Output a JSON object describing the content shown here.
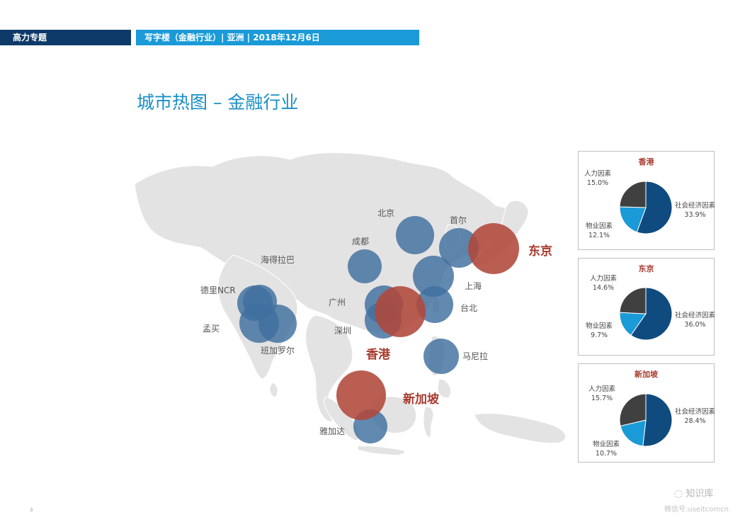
{
  "header": {
    "section": "高力专题",
    "subtitle": "写字楼（金融行业）| 亚洲 | 2018年12月6日"
  },
  "title": "城市热图 – 金融行业",
  "colors": {
    "dark_navy": "#0e3a69",
    "header_blue": "#1a9ad7",
    "bubble_blue": "#3f6f9f",
    "bubble_red": "#b1483a",
    "map_land": "#e3e3e3",
    "pie_navy": "#0f4b7f",
    "pie_blue": "#1a9ad7",
    "pie_gray": "#404040"
  },
  "map": {
    "cities": [
      {
        "name": "北京",
        "highlight": false
      },
      {
        "name": "首尔",
        "highlight": false
      },
      {
        "name": "东京",
        "highlight": true
      },
      {
        "name": "成都",
        "highlight": false
      },
      {
        "name": "上海",
        "highlight": false
      },
      {
        "name": "海得拉巴",
        "highlight": false
      },
      {
        "name": "德里NCR",
        "highlight": false
      },
      {
        "name": "广州",
        "highlight": false
      },
      {
        "name": "台北",
        "highlight": false
      },
      {
        "name": "孟买",
        "highlight": false
      },
      {
        "name": "深圳",
        "highlight": false
      },
      {
        "name": "班加罗尔",
        "highlight": false
      },
      {
        "name": "香港",
        "highlight": true
      },
      {
        "name": "马尼拉",
        "highlight": false
      },
      {
        "name": "新加坡",
        "highlight": true
      },
      {
        "name": "雅加达",
        "highlight": false
      }
    ]
  },
  "pies": [
    {
      "city": "香港",
      "slices": [
        {
          "label": "社会经济因素",
          "value": 33.9,
          "value_text": "33.9%"
        },
        {
          "label": "物业因素",
          "value": 12.1,
          "value_text": "12.1%"
        },
        {
          "label": "人力因素",
          "value": 15.0,
          "value_text": "15.0%"
        }
      ]
    },
    {
      "city": "东京",
      "slices": [
        {
          "label": "社会经济因素",
          "value": 36.0,
          "value_text": "36.0%"
        },
        {
          "label": "物业因素",
          "value": 9.7,
          "value_text": "9.7%"
        },
        {
          "label": "人力因素",
          "value": 14.6,
          "value_text": "14.6%"
        }
      ]
    },
    {
      "city": "新加坡",
      "slices": [
        {
          "label": "社会经济因素",
          "value": 28.4,
          "value_text": "28.4%"
        },
        {
          "label": "物业因素",
          "value": 10.7,
          "value_text": "10.7%"
        },
        {
          "label": "人力因素",
          "value": 15.7,
          "value_text": "15.7%"
        }
      ]
    }
  ],
  "footer": {
    "page_number": "3",
    "watermark_main": "知识库",
    "watermark_sub": "微信号:useitcomcn"
  }
}
